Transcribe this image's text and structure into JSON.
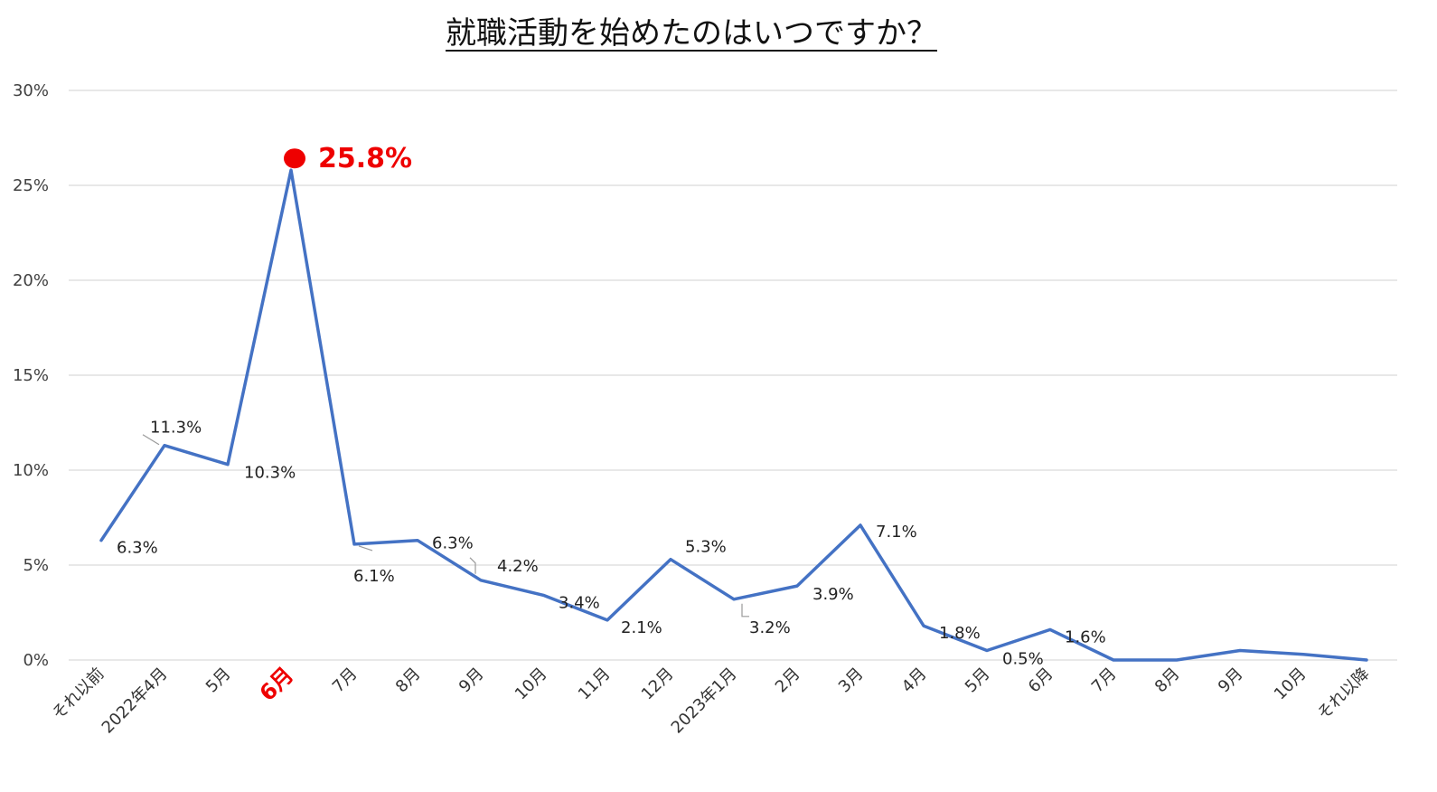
{
  "chart_data": {
    "type": "line",
    "title": "就職活動を始めたのはいつですか？",
    "xlabel": "",
    "ylabel": "",
    "ylim": [
      0,
      30
    ],
    "yticks": [
      "0%",
      "5%",
      "10%",
      "15%",
      "20%",
      "25%",
      "30%"
    ],
    "grid": true,
    "legend": "none",
    "categories": [
      "それ以前",
      "2022年4月",
      "5月",
      "6月",
      "7月",
      "8月",
      "9月",
      "10月",
      "11月",
      "12月",
      "2023年1月",
      "2月",
      "3月",
      "4月",
      "5月",
      "6月",
      "7月",
      "8月",
      "9月",
      "10月",
      "それ以降"
    ],
    "values": [
      6.3,
      11.3,
      10.3,
      25.8,
      6.1,
      6.3,
      4.2,
      3.4,
      2.1,
      5.3,
      3.2,
      3.9,
      7.1,
      1.8,
      0.5,
      1.6,
      0,
      0,
      0.5,
      0.3,
      0
    ],
    "data_labels": [
      "6.3%",
      "11.3%",
      "10.3%",
      "25.8%",
      "6.1%",
      "6.3%",
      "4.2%",
      "3.4%",
      "2.1%",
      "5.3%",
      "3.2%",
      "3.9%",
      "7.1%",
      "1.8%",
      "0.5%",
      "1.6%",
      "",
      "",
      "",
      "",
      ""
    ],
    "highlight_index": 3,
    "colors": {
      "line": "#4472c4",
      "highlight": "#ee0000",
      "grid": "#d9d9d9"
    }
  }
}
